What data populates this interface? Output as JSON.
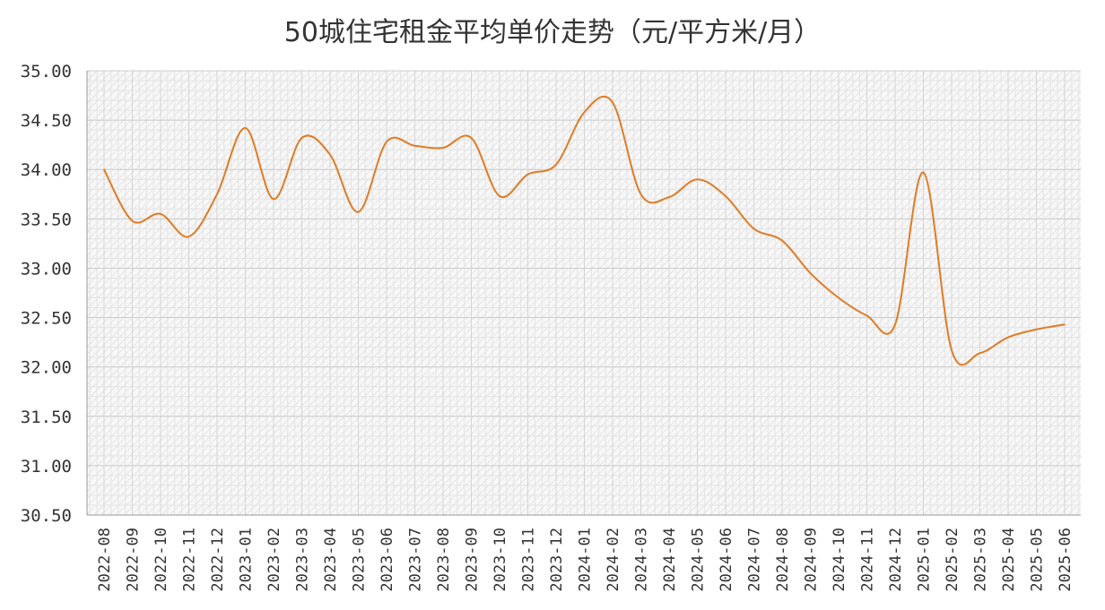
{
  "chart_data": {
    "type": "line",
    "title": "50城住宅租金平均单价走势（元/平方米/月）",
    "xlabel": "",
    "ylabel": "",
    "ylim": [
      30.5,
      35.0
    ],
    "yticks": [
      "35.00",
      "34.50",
      "34.00",
      "33.50",
      "33.00",
      "32.50",
      "32.00",
      "31.50",
      "31.00",
      "30.50"
    ],
    "grid": true,
    "legend": "none",
    "line_color": "#E07B24",
    "categories": [
      "2022-08",
      "2022-09",
      "2022-10",
      "2022-11",
      "2022-12",
      "2023-01",
      "2023-02",
      "2023-03",
      "2023-04",
      "2023-05",
      "2023-06",
      "2023-07",
      "2023-08",
      "2023-09",
      "2023-10",
      "2023-11",
      "2023-12",
      "2024-01",
      "2024-02",
      "2024-03",
      "2024-04",
      "2024-05",
      "2024-06",
      "2024-07",
      "2024-08",
      "2024-09",
      "2024-10",
      "2024-11",
      "2024-12",
      "2025-01",
      "2025-02",
      "2025-03",
      "2025-04",
      "2025-05",
      "2025-06"
    ],
    "values": [
      34.0,
      33.48,
      33.55,
      33.32,
      33.75,
      34.42,
      33.7,
      34.32,
      34.15,
      33.57,
      34.28,
      34.24,
      34.22,
      34.32,
      33.73,
      33.95,
      34.05,
      34.58,
      34.68,
      33.75,
      33.72,
      33.9,
      33.73,
      33.4,
      33.28,
      32.95,
      32.7,
      32.52,
      32.43,
      33.97,
      32.17,
      32.14,
      32.3,
      32.38,
      32.43
    ]
  }
}
